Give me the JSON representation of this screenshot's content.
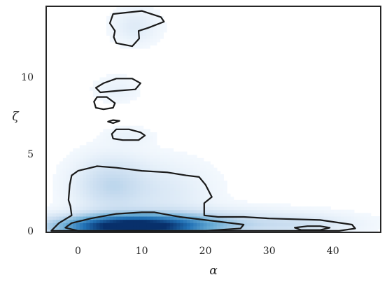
{
  "chart_data": {
    "type": "kde-density",
    "title": "",
    "xlabel": "α",
    "ylabel": "ζ",
    "xlim": [
      -5,
      47.5
    ],
    "ylim": [
      -0.1,
      14.6
    ],
    "xticks": [
      0,
      10,
      20,
      30,
      40
    ],
    "yticks": [
      0,
      5,
      10
    ],
    "x_tick_labels": [
      "0",
      "10",
      "20",
      "30",
      "40"
    ],
    "y_tick_labels": [
      "0",
      "5",
      "10"
    ],
    "colormap": "Blues",
    "grid": false,
    "density_blobs": [
      {
        "cx": 8,
        "cy": 0.3,
        "sx": 8,
        "sy": 0.5,
        "w": 1.0
      },
      {
        "cx": 20,
        "cy": 0.5,
        "sx": 12,
        "sy": 0.6,
        "w": 0.25
      },
      {
        "cx": 5,
        "cy": 3,
        "sx": 4,
        "sy": 1.3,
        "w": 0.25
      },
      {
        "cx": 14,
        "cy": 2.5,
        "sx": 5,
        "sy": 1.4,
        "w": 0.12
      },
      {
        "cx": 36,
        "cy": 0.4,
        "sx": 5,
        "sy": 0.4,
        "w": 0.1
      },
      {
        "cx": 9,
        "cy": 13.3,
        "sx": 2.5,
        "sy": 0.8,
        "w": 0.12
      },
      {
        "cx": 6,
        "cy": 9.2,
        "sx": 2.5,
        "sy": 0.6,
        "w": 0.07
      },
      {
        "cx": 8,
        "cy": 6.2,
        "sx": 2.5,
        "sy": 0.4,
        "w": 0.06
      }
    ],
    "contours": [
      {
        "level": "outer",
        "points": [
          [
            -4.2,
            0.0
          ],
          [
            -3,
            0.5
          ],
          [
            -1,
            1.0
          ],
          [
            -1.2,
            1.6
          ],
          [
            -1.5,
            2.0
          ],
          [
            -1.3,
            3.0
          ],
          [
            -1.0,
            3.6
          ],
          [
            0,
            3.9
          ],
          [
            3,
            4.2
          ],
          [
            6,
            4.1
          ],
          [
            10,
            3.9
          ],
          [
            14,
            3.8
          ],
          [
            17,
            3.6
          ],
          [
            19,
            3.5
          ],
          [
            20,
            3.0
          ],
          [
            21,
            2.2
          ],
          [
            19.8,
            1.8
          ],
          [
            19.8,
            1.0
          ],
          [
            22,
            0.9
          ],
          [
            26,
            0.9
          ],
          [
            30,
            0.8
          ],
          [
            38,
            0.7
          ],
          [
            43,
            0.4
          ],
          [
            43.5,
            0.15
          ],
          [
            41,
            0.0
          ],
          [
            -4.2,
            0.0
          ]
        ]
      },
      {
        "level": "inner",
        "points": [
          [
            -2.0,
            0.2
          ],
          [
            -1,
            0.5
          ],
          [
            2,
            0.8
          ],
          [
            6,
            1.1
          ],
          [
            10,
            1.2
          ],
          [
            12,
            1.2
          ],
          [
            16,
            0.9
          ],
          [
            20,
            0.7
          ],
          [
            26,
            0.4
          ],
          [
            25.5,
            0.15
          ],
          [
            20,
            0.0
          ],
          [
            10,
            0.0
          ],
          [
            0,
            0.0
          ],
          [
            -2.0,
            0.2
          ]
        ]
      },
      {
        "level": "inner",
        "points": [
          [
            34,
            0.2
          ],
          [
            36,
            0.3
          ],
          [
            38,
            0.3
          ],
          [
            39.5,
            0.2
          ],
          [
            38,
            0.05
          ],
          [
            35,
            0.05
          ],
          [
            34,
            0.2
          ]
        ]
      },
      {
        "level": "island",
        "points": [
          [
            5,
            13.5
          ],
          [
            5.5,
            14.1
          ],
          [
            10,
            14.3
          ],
          [
            13,
            13.9
          ],
          [
            13.5,
            13.6
          ],
          [
            11,
            13.2
          ],
          [
            9.5,
            13.0
          ],
          [
            9.6,
            12.5
          ],
          [
            8.5,
            12.0
          ],
          [
            6,
            12.2
          ],
          [
            5.6,
            12.6
          ],
          [
            5.8,
            13.0
          ],
          [
            5,
            13.5
          ]
        ]
      },
      {
        "level": "island",
        "points": [
          [
            2.8,
            9.3
          ],
          [
            4,
            9.6
          ],
          [
            6,
            9.9
          ],
          [
            8.5,
            9.9
          ],
          [
            9.8,
            9.6
          ],
          [
            9,
            9.2
          ],
          [
            6,
            9.1
          ],
          [
            3.5,
            9.0
          ],
          [
            2.8,
            9.3
          ]
        ]
      },
      {
        "level": "island",
        "points": [
          [
            2.5,
            8.4
          ],
          [
            3,
            8.7
          ],
          [
            4.5,
            8.7
          ],
          [
            5.8,
            8.3
          ],
          [
            5.5,
            8.0
          ],
          [
            4,
            7.9
          ],
          [
            2.8,
            8.0
          ],
          [
            2.5,
            8.4
          ]
        ]
      },
      {
        "level": "island",
        "points": [
          [
            4.7,
            7.1
          ],
          [
            5.5,
            7.2
          ],
          [
            6.5,
            7.15
          ],
          [
            5.5,
            7.0
          ],
          [
            4.7,
            7.1
          ]
        ]
      },
      {
        "level": "island",
        "points": [
          [
            5.3,
            6.3
          ],
          [
            6,
            6.6
          ],
          [
            8,
            6.6
          ],
          [
            9.8,
            6.4
          ],
          [
            10.5,
            6.2
          ],
          [
            9.5,
            5.9
          ],
          [
            7,
            5.9
          ],
          [
            5.5,
            6.0
          ],
          [
            5.3,
            6.3
          ]
        ]
      }
    ]
  }
}
